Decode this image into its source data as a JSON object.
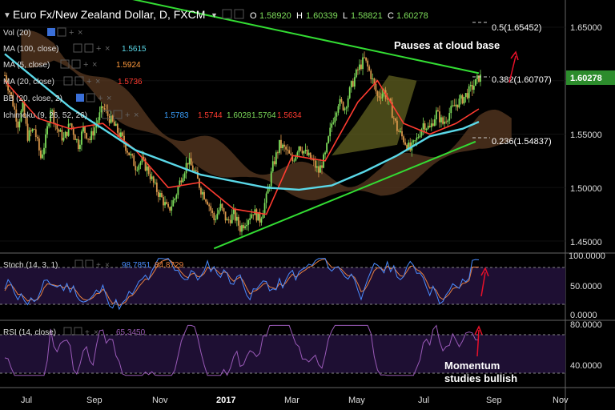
{
  "header": {
    "title": "Euro Fx/New Zealand Dollar, D, FXCM",
    "ohlc": [
      {
        "k": "O",
        "v": "1.58920"
      },
      {
        "k": "H",
        "v": "1.60339"
      },
      {
        "k": "L",
        "v": "1.58821"
      },
      {
        "k": "C",
        "v": "1.60278"
      }
    ]
  },
  "legend": [
    {
      "label": "Vol (20)",
      "value": "",
      "color": "#ddd"
    },
    {
      "label": "MA (100, close)",
      "value": "1.5615",
      "color": "#5ad8e8"
    },
    {
      "label": "MA (5, close)",
      "value": "1.5924",
      "color": "#ff9a3c"
    },
    {
      "label": "MA (20, close)",
      "value": "1.5736",
      "color": "#ff3b30"
    },
    {
      "label": "BB (20, close, 2)",
      "value": "",
      "color": "#ddd"
    },
    {
      "label": "Ichimoku (9, 26, 52, 26)",
      "values": [
        {
          "v": "1.5783",
          "c": "#3aa0ff"
        },
        {
          "v": "1.5744",
          "c": "#ff3b30"
        },
        {
          "v": "1.6028",
          "c": "#7ddc5a"
        },
        {
          "v": "1.5764",
          "c": "#7ddc5a"
        },
        {
          "v": "1.5634",
          "c": "#ff3b30"
        }
      ]
    }
  ],
  "fib": [
    {
      "label": "0.5(1.65452)",
      "price": 1.65452
    },
    {
      "label": "0.382(1.60707)",
      "price": 1.60707
    },
    {
      "label": "0.236(1.54837)",
      "price": 1.54837
    }
  ],
  "annotations": {
    "cloud": "Pauses at cloud base",
    "momentum": [
      "Momentum",
      "studies bullish"
    ]
  },
  "price_badge": "1.60278",
  "price_axis": [
    "1.65000",
    "1.60000",
    "1.55000",
    "1.50000",
    "1.45000"
  ],
  "stoch": {
    "label": "Stoch (14, 3, 1)",
    "k": "98.7851",
    "d": "84.8729",
    "axis": [
      "100.0000",
      "50.0000",
      "0.0000"
    ]
  },
  "rsi": {
    "label": "RSI (14, close)",
    "value": "65.3450",
    "axis": [
      "80.0000",
      "40.0000"
    ]
  },
  "time_axis": [
    "Jul",
    "Sep",
    "Nov",
    "2017",
    "Mar",
    "May",
    "Jul",
    "Sep",
    "Nov"
  ],
  "colors": {
    "bull": "#7ddc5a",
    "bear": "#d9964a",
    "trend": "#33dd33",
    "ma100": "#5ad8e8",
    "ma20": "#ff3b30",
    "stoch_k": "#4a8cff",
    "stoch_d": "#e88040",
    "rsi": "#9a5ab8",
    "panel": "#1e0f33",
    "arrow": "#e8102a"
  },
  "chart_data": {
    "type": "candlestick",
    "title": "Euro Fx/New Zealand Dollar, D, FXCM",
    "price_range": [
      1.43,
      1.68
    ],
    "price_ticks": [
      1.45,
      1.5,
      1.55,
      1.6,
      1.65
    ],
    "x_ticks": [
      "Jul",
      "Sep",
      "Nov",
      "2017",
      "Mar",
      "May",
      "Jul",
      "Sep",
      "Nov"
    ],
    "last_close": 1.60278,
    "path": [
      [
        0,
        1.605
      ],
      [
        4,
        1.585
      ],
      [
        8,
        1.56
      ],
      [
        11,
        1.575
      ],
      [
        14,
        1.548
      ],
      [
        18,
        1.555
      ],
      [
        22,
        1.528
      ],
      [
        25,
        1.545
      ],
      [
        28,
        1.575
      ],
      [
        32,
        1.555
      ],
      [
        36,
        1.545
      ],
      [
        40,
        1.56
      ],
      [
        45,
        1.54
      ],
      [
        48,
        1.555
      ],
      [
        52,
        1.545
      ],
      [
        56,
        1.56
      ],
      [
        60,
        1.575
      ],
      [
        64,
        1.565
      ],
      [
        68,
        1.555
      ],
      [
        72,
        1.545
      ],
      [
        76,
        1.532
      ],
      [
        80,
        1.52
      ],
      [
        84,
        1.525
      ],
      [
        88,
        1.515
      ],
      [
        92,
        1.5
      ],
      [
        96,
        1.49
      ],
      [
        100,
        1.478
      ],
      [
        104,
        1.49
      ],
      [
        108,
        1.51
      ],
      [
        112,
        1.525
      ],
      [
        116,
        1.515
      ],
      [
        120,
        1.498
      ],
      [
        124,
        1.488
      ],
      [
        128,
        1.47
      ],
      [
        132,
        1.482
      ],
      [
        136,
        1.468
      ],
      [
        140,
        1.475
      ],
      [
        144,
        1.462
      ],
      [
        148,
        1.47
      ],
      [
        152,
        1.478
      ],
      [
        156,
        1.47
      ],
      [
        160,
        1.49
      ],
      [
        164,
        1.52
      ],
      [
        168,
        1.54
      ],
      [
        172,
        1.535
      ],
      [
        176,
        1.525
      ],
      [
        180,
        1.54
      ],
      [
        184,
        1.532
      ],
      [
        188,
        1.525
      ],
      [
        192,
        1.515
      ],
      [
        196,
        1.53
      ],
      [
        200,
        1.56
      ],
      [
        204,
        1.58
      ],
      [
        208,
        1.575
      ],
      [
        212,
        1.595
      ],
      [
        216,
        1.61
      ],
      [
        220,
        1.62
      ],
      [
        224,
        1.605
      ],
      [
        228,
        1.585
      ],
      [
        232,
        1.59
      ],
      [
        236,
        1.575
      ],
      [
        240,
        1.555
      ],
      [
        244,
        1.545
      ],
      [
        248,
        1.535
      ],
      [
        252,
        1.545
      ],
      [
        256,
        1.56
      ],
      [
        260,
        1.555
      ],
      [
        264,
        1.57
      ],
      [
        268,
        1.56
      ],
      [
        272,
        1.57
      ],
      [
        276,
        1.578
      ],
      [
        280,
        1.583
      ],
      [
        284,
        1.59
      ],
      [
        288,
        1.598
      ],
      [
        290,
        1.603
      ]
    ],
    "n_bars": 292,
    "ma100": [
      [
        0,
        1.625
      ],
      [
        40,
        1.575
      ],
      [
        80,
        1.535
      ],
      [
        120,
        1.512
      ],
      [
        160,
        1.5
      ],
      [
        180,
        1.498
      ],
      [
        200,
        1.502
      ],
      [
        220,
        1.515
      ],
      [
        240,
        1.53
      ],
      [
        260,
        1.548
      ],
      [
        280,
        1.555
      ],
      [
        290,
        1.5615
      ]
    ],
    "ma20": [
      [
        0,
        1.6
      ],
      [
        20,
        1.565
      ],
      [
        40,
        1.555
      ],
      [
        60,
        1.56
      ],
      [
        80,
        1.535
      ],
      [
        100,
        1.5
      ],
      [
        120,
        1.505
      ],
      [
        140,
        1.48
      ],
      [
        160,
        1.475
      ],
      [
        176,
        1.53
      ],
      [
        196,
        1.525
      ],
      [
        216,
        1.58
      ],
      [
        228,
        1.6
      ],
      [
        244,
        1.56
      ],
      [
        260,
        1.55
      ],
      [
        276,
        1.56
      ],
      [
        290,
        1.5736
      ]
    ],
    "trendlines": [
      {
        "name": "upper",
        "from": [
          42,
          1.688
        ],
        "to": [
          290,
          1.607
        ]
      },
      {
        "name": "lower",
        "from": [
          128,
          1.443
        ],
        "to": [
          288,
          1.543
        ]
      }
    ],
    "stoch_k_last": 98.7851,
    "stoch_d_last": 84.8729,
    "rsi_last": 65.345
  }
}
